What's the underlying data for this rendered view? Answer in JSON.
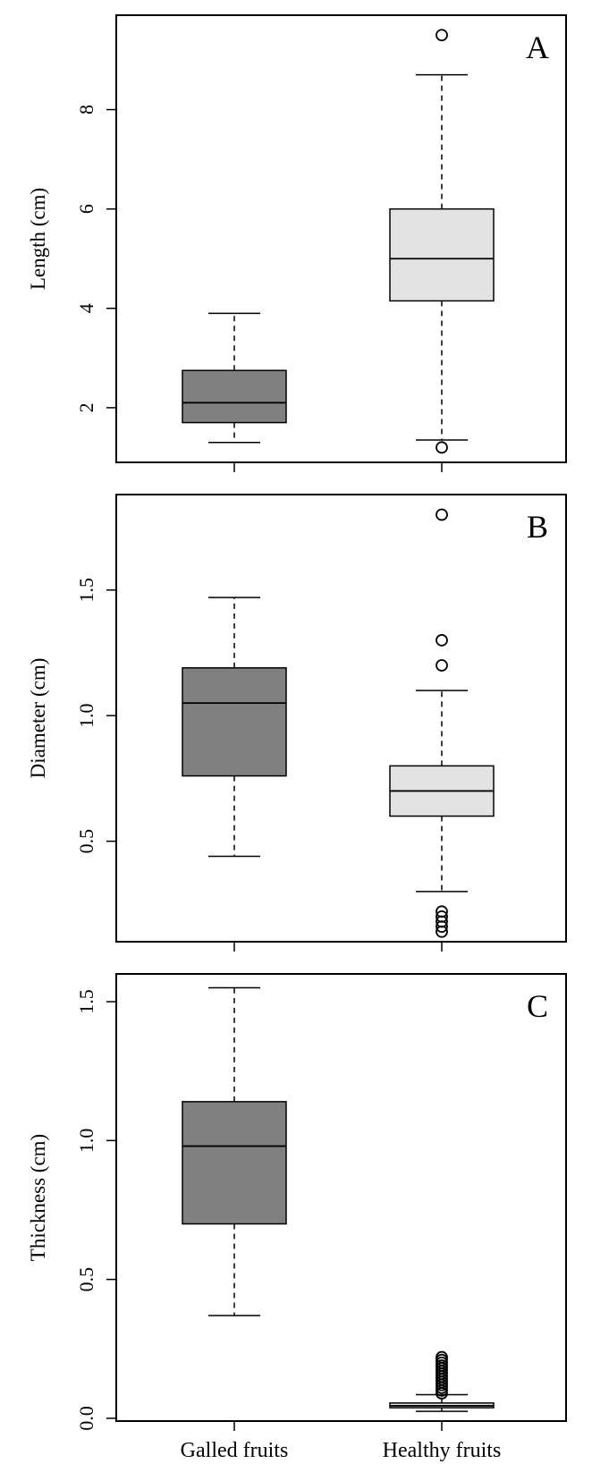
{
  "chart_data": [
    {
      "type": "boxplot",
      "panel_label": "A",
      "ylabel": "Length (cm)",
      "ylim": [
        0.9,
        9.9
      ],
      "yticks": [
        2,
        4,
        6,
        8
      ],
      "ytick_labels": [
        "2",
        "4",
        "6",
        "8"
      ],
      "boxes": [
        {
          "category": "Galled fruits",
          "fill": "#808080",
          "whisker_low": 1.3,
          "q1": 1.7,
          "median": 2.1,
          "q3": 2.75,
          "whisker_high": 3.9,
          "outliers": []
        },
        {
          "category": "Healthy fruits",
          "fill": "#e3e3e3",
          "whisker_low": 1.35,
          "q1": 4.15,
          "median": 5.0,
          "q3": 6.0,
          "whisker_high": 8.7,
          "outliers": [
            1.2,
            9.5
          ]
        }
      ]
    },
    {
      "type": "boxplot",
      "panel_label": "B",
      "ylabel": "Diameter (cm)",
      "ylim": [
        0.1,
        1.88
      ],
      "yticks": [
        0.5,
        1.0,
        1.5
      ],
      "ytick_labels": [
        "0.5",
        "1.0",
        "1.5"
      ],
      "boxes": [
        {
          "category": "Galled fruits",
          "fill": "#808080",
          "whisker_low": 0.44,
          "q1": 0.76,
          "median": 1.05,
          "q3": 1.19,
          "whisker_high": 1.47,
          "outliers": []
        },
        {
          "category": "Healthy fruits",
          "fill": "#e3e3e3",
          "whisker_low": 0.3,
          "q1": 0.6,
          "median": 0.7,
          "q3": 0.8,
          "whisker_high": 1.1,
          "outliers": [
            1.8,
            1.3,
            1.2,
            0.22,
            0.2,
            0.18,
            0.16,
            0.14
          ]
        }
      ]
    },
    {
      "type": "boxplot",
      "panel_label": "C",
      "ylabel": "Thickness (cm)",
      "ylim": [
        -0.01,
        1.6
      ],
      "yticks": [
        0.0,
        0.5,
        1.0,
        1.5
      ],
      "ytick_labels": [
        "0.0",
        "0.5",
        "1.0",
        "1.5"
      ],
      "boxes": [
        {
          "category": "Galled fruits",
          "fill": "#808080",
          "whisker_low": 0.37,
          "q1": 0.7,
          "median": 0.98,
          "q3": 1.14,
          "whisker_high": 1.55,
          "outliers": []
        },
        {
          "category": "Healthy fruits",
          "fill": "#e3e3e3",
          "whisker_low": 0.025,
          "q1": 0.038,
          "median": 0.045,
          "q3": 0.055,
          "whisker_high": 0.085,
          "outliers": [
            0.22,
            0.21,
            0.2,
            0.19,
            0.18,
            0.17,
            0.16,
            0.15,
            0.14,
            0.13,
            0.12,
            0.11,
            0.1,
            0.09
          ]
        }
      ]
    }
  ],
  "x_categories": [
    "Galled fruits",
    "Healthy fruits"
  ]
}
